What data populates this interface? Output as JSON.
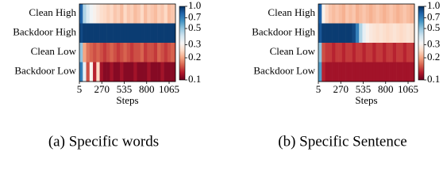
{
  "chart_data": [
    {
      "type": "heatmap",
      "xlabel": "Steps",
      "caption": "(a) Specific words",
      "rows": [
        "Clean High",
        "Backdoor High",
        "Clean Low",
        "Backdoor Low"
      ],
      "x": [
        5,
        45,
        85,
        125,
        165,
        205,
        245,
        285,
        325,
        365,
        405,
        445,
        485,
        525,
        565,
        605,
        645,
        685,
        725,
        765,
        805,
        845,
        885,
        925,
        965,
        1005,
        1045,
        1085,
        1125
      ],
      "xlim": [
        5,
        1140
      ],
      "xticks": [
        5,
        270,
        535,
        800,
        1065
      ],
      "values": [
        [
          0.8,
          0.45,
          0.38,
          0.33,
          0.3,
          0.28,
          0.26,
          0.25,
          0.24,
          0.25,
          0.23,
          0.24,
          0.22,
          0.25,
          0.23,
          0.24,
          0.22,
          0.23,
          0.25,
          0.22,
          0.24,
          0.23,
          0.22,
          0.24,
          0.23,
          0.25,
          0.22,
          0.23,
          0.24
        ],
        [
          0.9,
          0.95,
          0.95,
          0.95,
          0.95,
          0.95,
          0.95,
          0.95,
          0.95,
          0.95,
          0.95,
          0.95,
          0.95,
          0.95,
          0.95,
          0.95,
          0.95,
          0.95,
          0.95,
          0.95,
          0.95,
          0.95,
          0.95,
          0.95,
          0.95,
          0.95,
          0.95,
          0.95,
          0.95
        ],
        [
          0.5,
          0.2,
          0.17,
          0.16,
          0.15,
          0.16,
          0.15,
          0.14,
          0.15,
          0.16,
          0.15,
          0.14,
          0.15,
          0.16,
          0.15,
          0.14,
          0.15,
          0.15,
          0.16,
          0.14,
          0.15,
          0.15,
          0.14,
          0.16,
          0.15,
          0.14,
          0.15,
          0.16,
          0.15
        ],
        [
          0.7,
          0.35,
          0.15,
          0.3,
          0.13,
          0.25,
          0.12,
          0.11,
          0.11,
          0.12,
          0.11,
          0.11,
          0.12,
          0.11,
          0.11,
          0.11,
          0.12,
          0.11,
          0.11,
          0.11,
          0.12,
          0.11,
          0.11,
          0.11,
          0.12,
          0.11,
          0.11,
          0.11,
          0.11
        ]
      ],
      "clim": [
        0.1,
        1
      ],
      "cscale": "log",
      "cticks": [
        {
          "value": 1,
          "label": "1.0"
        },
        0.7,
        0.5,
        0.3,
        0.2,
        0.1
      ],
      "colormap": [
        "#67001f",
        "#b2182b",
        "#d6604d",
        "#f4a582",
        "#fddbc7",
        "#f7f7f7",
        "#d1e5f0",
        "#92c5de",
        "#4393c3",
        "#2166ac",
        "#053061"
      ]
    },
    {
      "type": "heatmap",
      "xlabel": "Steps",
      "caption": "(b) Specific Sentence",
      "rows": [
        "Clean High",
        "Backdoor High",
        "Clean Low",
        "Backdoor Low"
      ],
      "x": [
        5,
        45,
        85,
        125,
        165,
        205,
        245,
        285,
        325,
        365,
        405,
        445,
        485,
        525,
        565,
        605,
        645,
        685,
        725,
        765,
        805,
        845,
        885,
        925,
        965,
        1005,
        1045,
        1085,
        1125
      ],
      "xlim": [
        5,
        1140
      ],
      "xticks": [
        5,
        270,
        535,
        800,
        1065
      ],
      "values": [
        [
          0.8,
          0.3,
          0.25,
          0.23,
          0.22,
          0.23,
          0.22,
          0.21,
          0.23,
          0.22,
          0.23,
          0.21,
          0.22,
          0.23,
          0.22,
          0.21,
          0.22,
          0.23,
          0.22,
          0.21,
          0.22,
          0.23,
          0.22,
          0.21,
          0.22,
          0.23,
          0.22,
          0.21,
          0.22
        ],
        [
          0.85,
          0.95,
          0.95,
          0.95,
          0.95,
          0.95,
          0.95,
          0.95,
          0.95,
          0.95,
          0.9,
          0.7,
          0.45,
          0.35,
          0.3,
          0.28,
          0.27,
          0.26,
          0.27,
          0.26,
          0.25,
          0.26,
          0.27,
          0.26,
          0.25,
          0.26,
          0.27,
          0.26,
          0.25
        ],
        [
          0.5,
          0.15,
          0.14,
          0.14,
          0.13,
          0.14,
          0.14,
          0.13,
          0.14,
          0.14,
          0.13,
          0.14,
          0.14,
          0.13,
          0.14,
          0.14,
          0.13,
          0.14,
          0.14,
          0.13,
          0.14,
          0.14,
          0.13,
          0.14,
          0.14,
          0.13,
          0.14,
          0.14,
          0.13
        ],
        [
          0.6,
          0.13,
          0.12,
          0.12,
          0.12,
          0.12,
          0.12,
          0.12,
          0.12,
          0.12,
          0.12,
          0.12,
          0.12,
          0.12,
          0.12,
          0.12,
          0.12,
          0.12,
          0.12,
          0.12,
          0.12,
          0.12,
          0.12,
          0.12,
          0.12,
          0.12,
          0.12,
          0.12,
          0.12
        ]
      ],
      "clim": [
        0.1,
        1
      ],
      "cscale": "log",
      "cticks": [
        {
          "value": 1,
          "label": "1.0"
        },
        0.7,
        0.5,
        0.3,
        0.2,
        0.1
      ],
      "colormap": [
        "#67001f",
        "#b2182b",
        "#d6604d",
        "#f4a582",
        "#fddbc7",
        "#f7f7f7",
        "#d1e5f0",
        "#92c5de",
        "#4393c3",
        "#2166ac",
        "#053061"
      ]
    }
  ]
}
